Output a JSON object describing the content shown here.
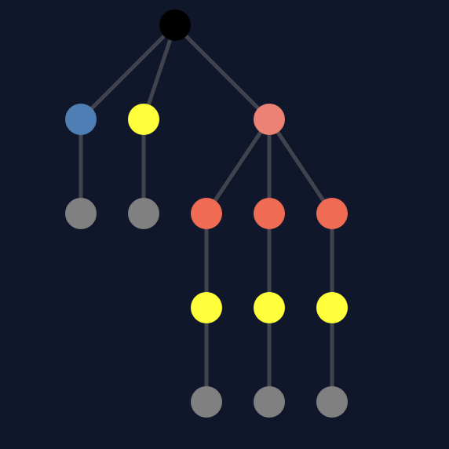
{
  "colors": {
    "background": "#11172a",
    "edge": "#41444f",
    "black": "#000000",
    "blue": "#4e7fb4",
    "yellow": "#ffff3c",
    "salmon": "#eb8273",
    "coral": "#f06b53",
    "gray": "#808080"
  },
  "tree": {
    "nodes": [
      {
        "id": "root",
        "color": "black",
        "depth": 0
      },
      {
        "id": "a",
        "color": "blue",
        "depth": 1,
        "parent": "root"
      },
      {
        "id": "b",
        "color": "yellow",
        "depth": 1,
        "parent": "root"
      },
      {
        "id": "c",
        "color": "salmon",
        "depth": 1,
        "parent": "root"
      },
      {
        "id": "a1",
        "color": "gray",
        "depth": 2,
        "parent": "a"
      },
      {
        "id": "b1",
        "color": "gray",
        "depth": 2,
        "parent": "b"
      },
      {
        "id": "c1",
        "color": "coral",
        "depth": 2,
        "parent": "c"
      },
      {
        "id": "c2",
        "color": "coral",
        "depth": 2,
        "parent": "c"
      },
      {
        "id": "c3",
        "color": "coral",
        "depth": 2,
        "parent": "c"
      },
      {
        "id": "c1a",
        "color": "yellow",
        "depth": 3,
        "parent": "c1"
      },
      {
        "id": "c2a",
        "color": "yellow",
        "depth": 3,
        "parent": "c2"
      },
      {
        "id": "c3a",
        "color": "yellow",
        "depth": 3,
        "parent": "c3"
      },
      {
        "id": "c1a1",
        "color": "gray",
        "depth": 4,
        "parent": "c1a"
      },
      {
        "id": "c2a1",
        "color": "gray",
        "depth": 4,
        "parent": "c2a"
      },
      {
        "id": "c3a1",
        "color": "gray",
        "depth": 4,
        "parent": "c3a"
      }
    ]
  }
}
